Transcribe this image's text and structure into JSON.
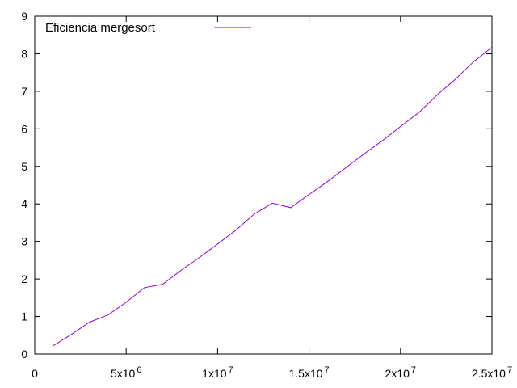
{
  "chart_data": {
    "type": "line",
    "title": "",
    "xlabel": "",
    "ylabel": "",
    "xlim": [
      0,
      25000000
    ],
    "ylim": [
      0,
      9
    ],
    "grid": false,
    "legend_position": "top-left",
    "x_ticks": [
      {
        "value": 0,
        "mantissa": "0",
        "exponent": ""
      },
      {
        "value": 5000000,
        "mantissa": "5x10",
        "exponent": "6"
      },
      {
        "value": 10000000,
        "mantissa": "1x10",
        "exponent": "7"
      },
      {
        "value": 15000000,
        "mantissa": "1.5x10",
        "exponent": "7"
      },
      {
        "value": 20000000,
        "mantissa": "2x10",
        "exponent": "7"
      },
      {
        "value": 25000000,
        "mantissa": "2.5x10",
        "exponent": "7"
      }
    ],
    "y_ticks": [
      {
        "value": 0,
        "label": "0"
      },
      {
        "value": 1,
        "label": "1"
      },
      {
        "value": 2,
        "label": "2"
      },
      {
        "value": 3,
        "label": "3"
      },
      {
        "value": 4,
        "label": "4"
      },
      {
        "value": 5,
        "label": "5"
      },
      {
        "value": 6,
        "label": "6"
      },
      {
        "value": 7,
        "label": "7"
      },
      {
        "value": 8,
        "label": "8"
      },
      {
        "value": 9,
        "label": "9"
      }
    ],
    "series": [
      {
        "name": "Eficiencia mergesort",
        "color": "#9400d3",
        "x": [
          1000000,
          2000000,
          3000000,
          4000000,
          5000000,
          6000000,
          7000000,
          8000000,
          9000000,
          10000000,
          11000000,
          12000000,
          13000000,
          14000000,
          15000000,
          16000000,
          17000000,
          18000000,
          19000000,
          20000000,
          21000000,
          22000000,
          23000000,
          24000000,
          25000000
        ],
        "y": [
          0.22,
          0.52,
          0.85,
          1.04,
          1.38,
          1.77,
          1.86,
          2.23,
          2.57,
          2.93,
          3.3,
          3.73,
          4.02,
          3.9,
          4.25,
          4.59,
          4.96,
          5.33,
          5.68,
          6.06,
          6.43,
          6.9,
          7.32,
          7.79,
          8.17
        ]
      }
    ]
  }
}
